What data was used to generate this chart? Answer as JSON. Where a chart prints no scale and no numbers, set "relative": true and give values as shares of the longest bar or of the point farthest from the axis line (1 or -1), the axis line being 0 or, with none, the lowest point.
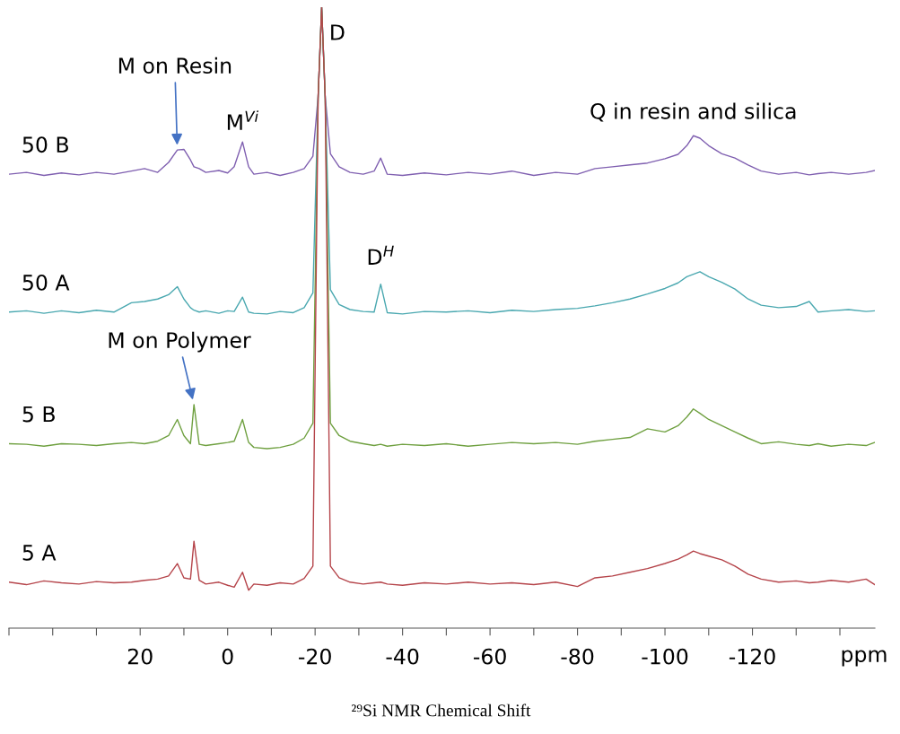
{
  "chart_data": {
    "type": "line",
    "relative": true,
    "xlabel": "ppm",
    "tick_labels": "x",
    "x": [
      50,
      46,
      42,
      38,
      34,
      30,
      26,
      22,
      19,
      16,
      13.5,
      11.5,
      10,
      8.5,
      7.7,
      6.5,
      5,
      2,
      0,
      -1.5,
      -3.4,
      -4.8,
      -6,
      -9,
      -12,
      -15,
      -17.5,
      -19.5,
      -20.7,
      -21.5,
      -22.3,
      -23.5,
      -25.5,
      -28,
      -31,
      -33.5,
      -35,
      -36.5,
      -40,
      -45,
      -50,
      -55,
      -60,
      -65,
      -70,
      -75,
      -80,
      -84,
      -88,
      -92,
      -96,
      -100,
      -103,
      -105,
      -106.5,
      -108,
      -110,
      -113,
      -116,
      -119,
      -122,
      -126,
      -130,
      -133,
      -135,
      -138,
      -142,
      -146,
      -148
    ],
    "xlim": [
      50,
      -148
    ],
    "xticks": [
      {
        "value": 50,
        "label": null
      },
      {
        "value": 40,
        "label": null
      },
      {
        "value": 30,
        "label": null
      },
      20,
      {
        "value": 10,
        "label": null
      },
      0,
      {
        "value": -10,
        "label": null
      },
      -20,
      {
        "value": -30,
        "label": null
      },
      -40,
      {
        "value": -50,
        "label": null
      },
      -60,
      {
        "value": -70,
        "label": null
      },
      -80,
      {
        "value": -90,
        "label": null
      },
      -100,
      {
        "value": -110,
        "label": null
      },
      -120,
      {
        "value": -130,
        "label": null
      },
      {
        "value": -140,
        "label": null
      }
    ],
    "line_style": "solid",
    "series": [
      {
        "name": "50 B",
        "color": "#7f5fb0",
        "values": [
          0.731,
          0.734,
          0.729,
          0.733,
          0.73,
          0.734,
          0.731,
          0.736,
          0.74,
          0.734,
          0.75,
          0.77,
          0.771,
          0.754,
          0.743,
          0.74,
          0.734,
          0.737,
          0.733,
          0.743,
          0.783,
          0.743,
          0.731,
          0.734,
          0.729,
          0.734,
          0.74,
          0.76,
          0.857,
          1.0,
          0.857,
          0.764,
          0.743,
          0.734,
          0.731,
          0.736,
          0.757,
          0.731,
          0.729,
          0.733,
          0.73,
          0.734,
          0.731,
          0.736,
          0.729,
          0.734,
          0.731,
          0.74,
          0.743,
          0.746,
          0.749,
          0.756,
          0.763,
          0.777,
          0.793,
          0.789,
          0.777,
          0.764,
          0.757,
          0.746,
          0.736,
          0.731,
          0.734,
          0.73,
          0.732,
          0.734,
          0.731,
          0.734,
          0.737
        ]
      },
      {
        "name": "50 A",
        "color": "#4aa8b0",
        "values": [
          0.509,
          0.511,
          0.507,
          0.511,
          0.508,
          0.512,
          0.509,
          0.524,
          0.526,
          0.53,
          0.537,
          0.55,
          0.53,
          0.516,
          0.512,
          0.509,
          0.511,
          0.507,
          0.511,
          0.51,
          0.533,
          0.509,
          0.507,
          0.506,
          0.51,
          0.508,
          0.516,
          0.54,
          0.857,
          1.0,
          0.857,
          0.545,
          0.521,
          0.513,
          0.51,
          0.509,
          0.554,
          0.508,
          0.506,
          0.51,
          0.509,
          0.511,
          0.508,
          0.512,
          0.51,
          0.513,
          0.515,
          0.519,
          0.524,
          0.53,
          0.538,
          0.547,
          0.556,
          0.566,
          0.57,
          0.574,
          0.566,
          0.557,
          0.546,
          0.53,
          0.52,
          0.516,
          0.518,
          0.526,
          0.509,
          0.511,
          0.513,
          0.51,
          0.511
        ]
      },
      {
        "name": "5 B",
        "color": "#6fa040",
        "values": [
          0.297,
          0.296,
          0.293,
          0.297,
          0.296,
          0.294,
          0.297,
          0.299,
          0.297,
          0.301,
          0.31,
          0.336,
          0.31,
          0.297,
          0.36,
          0.296,
          0.294,
          0.297,
          0.299,
          0.301,
          0.336,
          0.299,
          0.291,
          0.289,
          0.291,
          0.296,
          0.306,
          0.33,
          0.857,
          1.0,
          0.857,
          0.33,
          0.31,
          0.301,
          0.297,
          0.294,
          0.296,
          0.293,
          0.296,
          0.294,
          0.297,
          0.293,
          0.296,
          0.299,
          0.297,
          0.299,
          0.296,
          0.301,
          0.304,
          0.307,
          0.321,
          0.316,
          0.326,
          0.34,
          0.353,
          0.346,
          0.336,
          0.326,
          0.316,
          0.306,
          0.297,
          0.3,
          0.296,
          0.294,
          0.297,
          0.293,
          0.296,
          0.294,
          0.299
        ]
      },
      {
        "name": "5 A",
        "color": "#b5444a",
        "values": [
          0.074,
          0.07,
          0.076,
          0.073,
          0.071,
          0.075,
          0.073,
          0.074,
          0.077,
          0.079,
          0.084,
          0.104,
          0.081,
          0.079,
          0.14,
          0.077,
          0.071,
          0.074,
          0.069,
          0.066,
          0.09,
          0.061,
          0.071,
          0.069,
          0.073,
          0.071,
          0.08,
          0.1,
          0.857,
          1.0,
          0.857,
          0.1,
          0.081,
          0.074,
          0.071,
          0.073,
          0.074,
          0.071,
          0.069,
          0.073,
          0.071,
          0.074,
          0.071,
          0.073,
          0.07,
          0.074,
          0.067,
          0.081,
          0.084,
          0.09,
          0.096,
          0.104,
          0.111,
          0.118,
          0.124,
          0.12,
          0.116,
          0.11,
          0.1,
          0.087,
          0.079,
          0.074,
          0.076,
          0.073,
          0.074,
          0.077,
          0.074,
          0.079,
          0.07
        ]
      }
    ],
    "annotations": [
      {
        "text": "M on Resin",
        "x": 11.5,
        "y": 0.77
      },
      {
        "text": "M$^{Vi}$",
        "x": -3.4,
        "y": 0.783
      },
      {
        "text": "D",
        "x": -21.5,
        "y": 0.94
      },
      {
        "text": "Q in resin and silica",
        "x": -106.5,
        "y": 0.793
      },
      {
        "text": "D$^{H}$",
        "x": -35,
        "y": 0.554
      },
      {
        "text": "M on Polymer",
        "x": 7.7,
        "y": 0.36
      },
      "²⁹Si NMR Chemical Shift"
    ]
  }
}
